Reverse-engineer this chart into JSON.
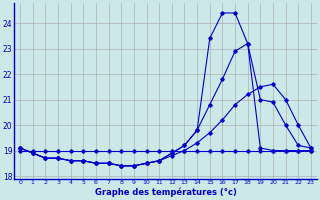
{
  "xlabel": "Graphe des températures (°c)",
  "background_color": "#cce8e8",
  "line_color": "#0000cc",
  "grid_color": "#b0b0b0",
  "xlim": [
    -0.5,
    23.5
  ],
  "ylim": [
    17.9,
    24.8
  ],
  "yticks": [
    18,
    19,
    20,
    21,
    22,
    23,
    24
  ],
  "xticks": [
    0,
    1,
    2,
    3,
    4,
    5,
    6,
    7,
    8,
    9,
    10,
    11,
    12,
    13,
    14,
    15,
    16,
    17,
    18,
    19,
    20,
    21,
    22,
    23
  ],
  "series": [
    {
      "x": [
        0,
        1,
        2,
        3,
        4,
        5,
        6,
        7,
        8,
        9,
        10,
        11,
        12,
        13,
        14,
        15,
        16,
        17,
        18,
        19,
        20,
        21,
        22,
        23
      ],
      "y": [
        19.0,
        19.0,
        19.0,
        19.0,
        19.0,
        19.0,
        19.0,
        19.0,
        19.0,
        19.0,
        19.0,
        19.0,
        19.0,
        19.0,
        19.0,
        19.0,
        19.0,
        19.0,
        19.0,
        19.0,
        19.0,
        19.0,
        19.0,
        19.0
      ]
    },
    {
      "x": [
        0,
        1,
        2,
        3,
        4,
        5,
        6,
        7,
        8,
        9,
        10,
        11,
        12,
        13,
        14,
        15,
        16,
        17,
        18,
        19,
        20,
        21,
        22,
        23
      ],
      "y": [
        19.1,
        18.9,
        18.7,
        18.7,
        18.6,
        18.6,
        18.5,
        18.5,
        18.4,
        18.4,
        18.5,
        18.6,
        18.8,
        19.0,
        19.3,
        19.7,
        20.2,
        20.8,
        21.2,
        21.5,
        21.6,
        21.0,
        20.0,
        19.1
      ]
    },
    {
      "x": [
        0,
        1,
        2,
        3,
        4,
        5,
        6,
        7,
        8,
        9,
        10,
        11,
        12,
        13,
        14,
        15,
        16,
        17,
        18,
        19,
        20,
        21,
        22,
        23
      ],
      "y": [
        19.1,
        18.9,
        18.7,
        18.7,
        18.6,
        18.6,
        18.5,
        18.5,
        18.4,
        18.4,
        18.5,
        18.6,
        18.9,
        19.2,
        19.8,
        20.8,
        21.8,
        22.9,
        23.2,
        21.0,
        20.9,
        20.0,
        19.2,
        19.1
      ]
    },
    {
      "x": [
        0,
        1,
        2,
        3,
        4,
        5,
        6,
        7,
        8,
        9,
        10,
        11,
        12,
        13,
        14,
        15,
        16,
        17,
        18,
        19,
        20,
        21,
        22,
        23
      ],
      "y": [
        19.1,
        18.9,
        18.7,
        18.7,
        18.6,
        18.6,
        18.5,
        18.5,
        18.4,
        18.4,
        18.5,
        18.6,
        18.9,
        19.2,
        19.8,
        23.4,
        24.4,
        24.4,
        23.2,
        19.1,
        19.0,
        19.0,
        19.0,
        19.0
      ]
    }
  ]
}
